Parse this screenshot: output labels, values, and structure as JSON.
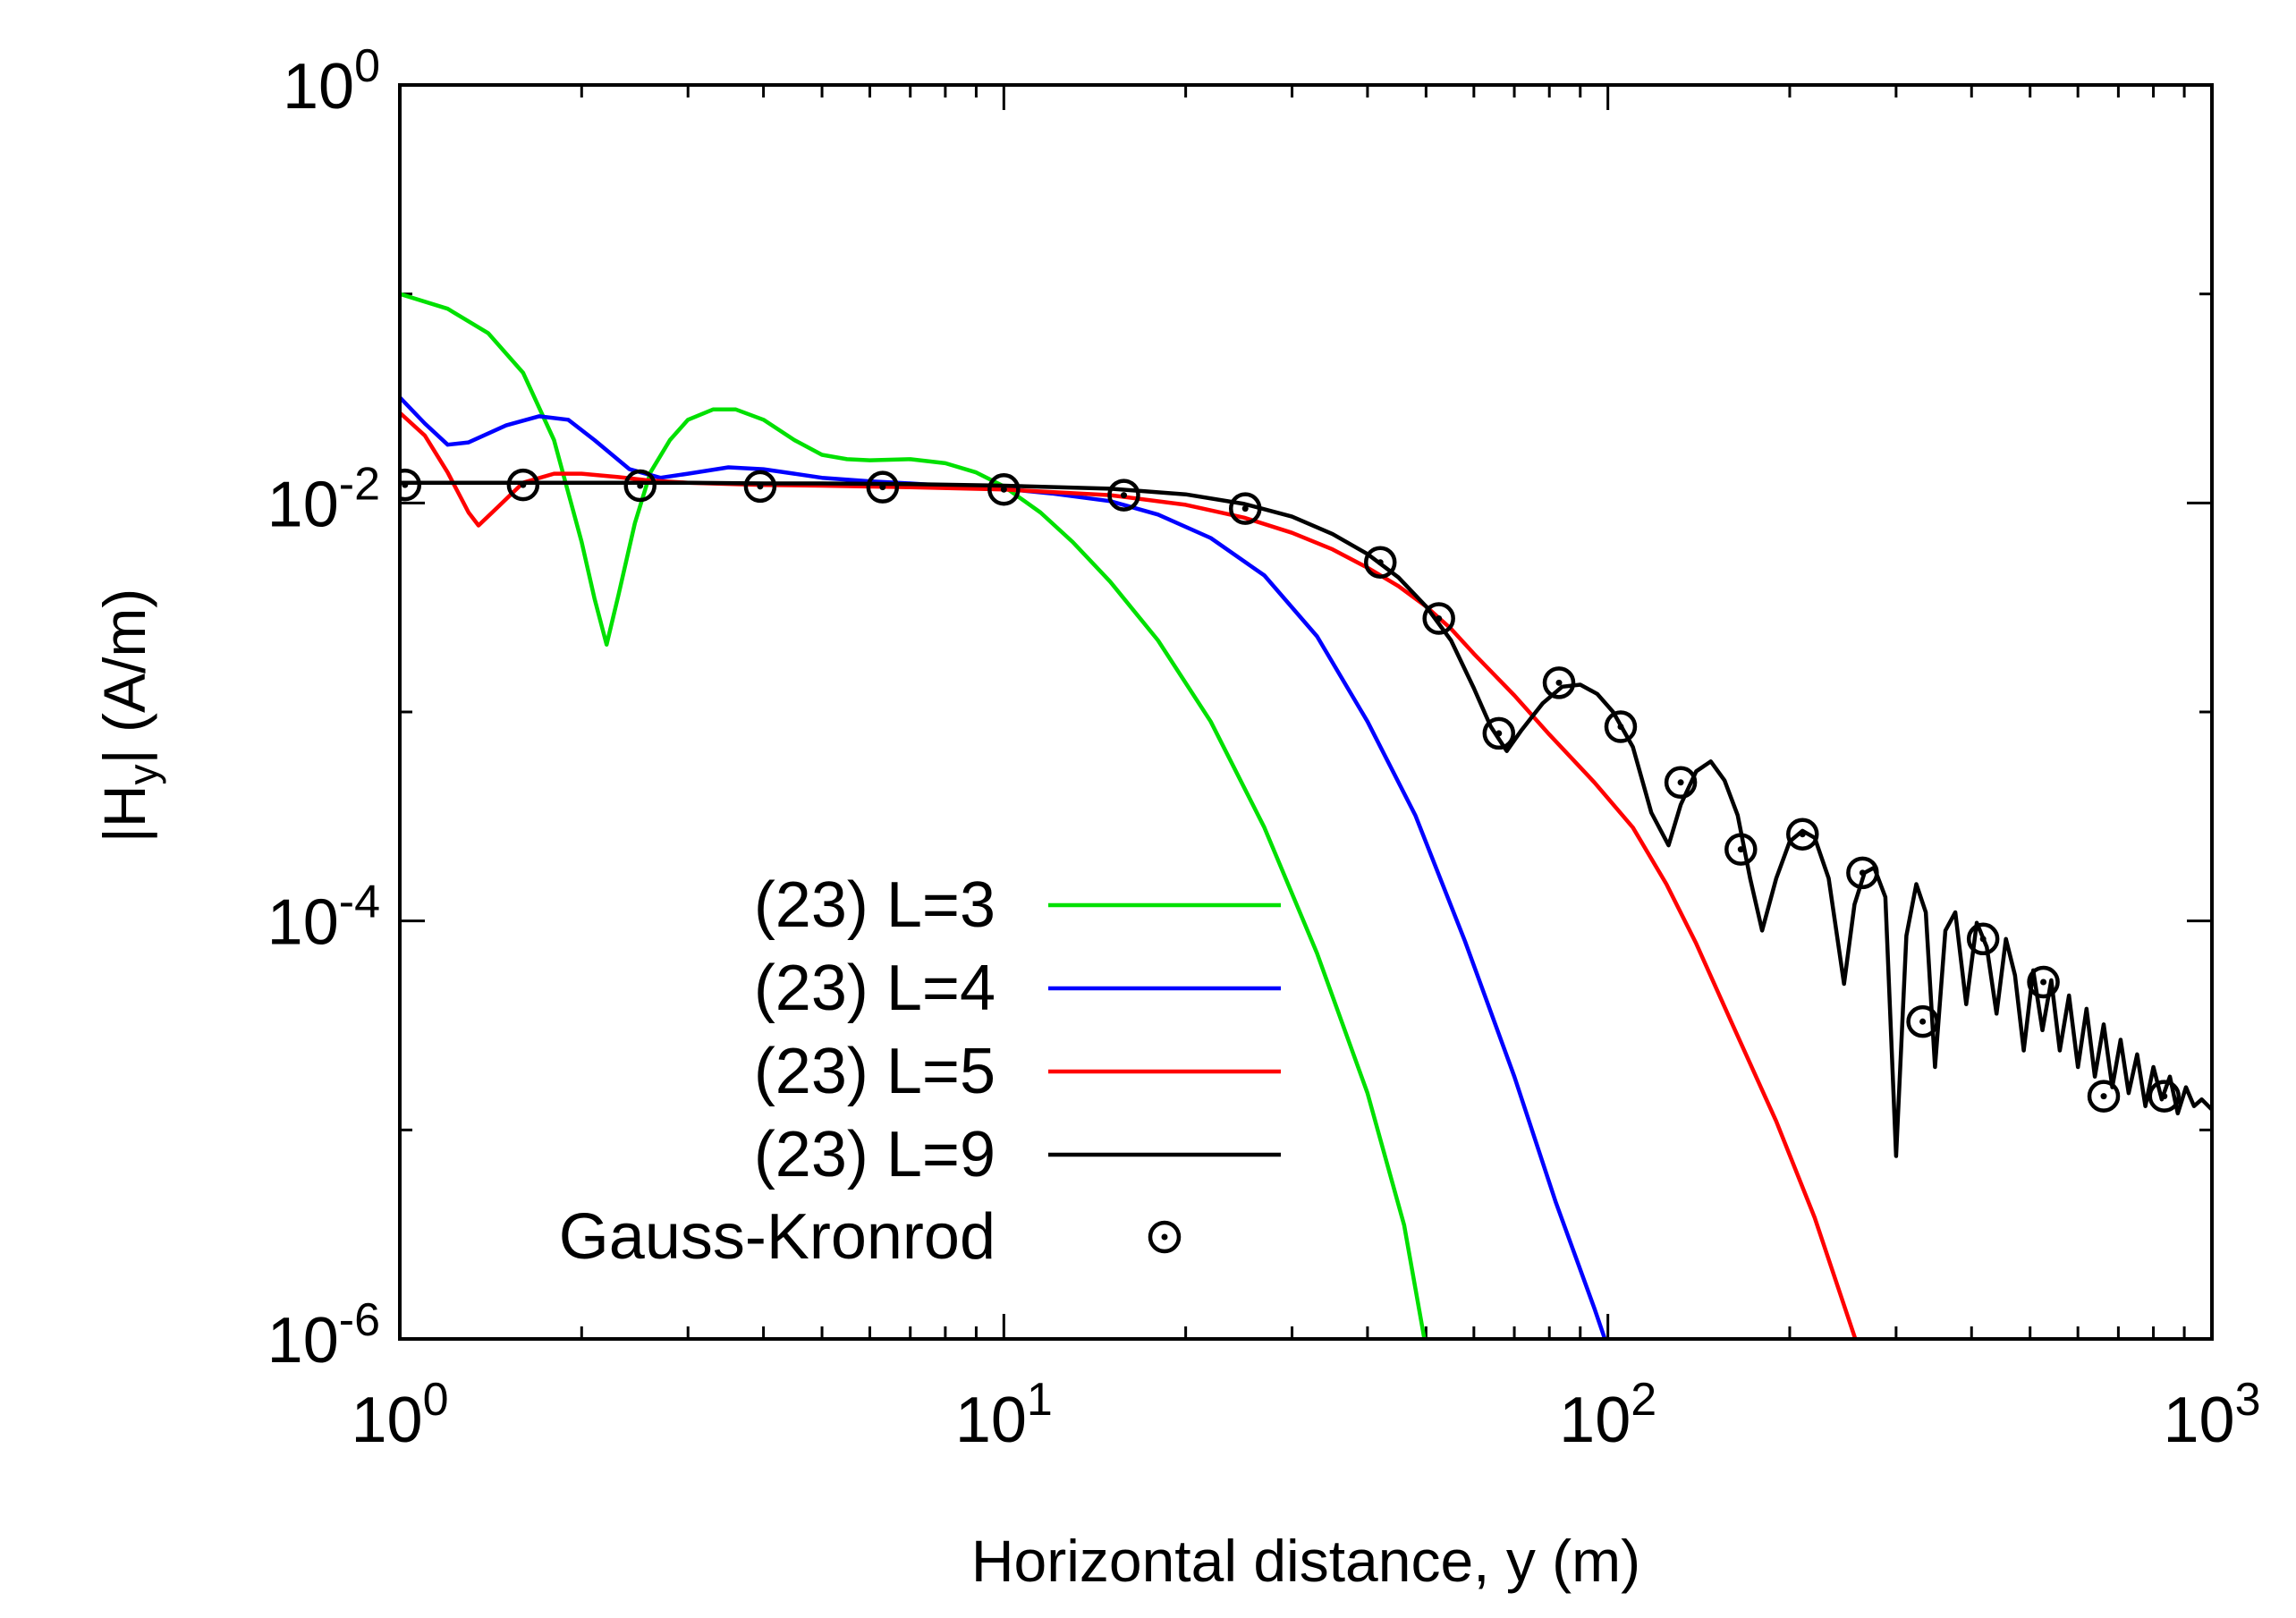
{
  "chart_data": {
    "type": "line",
    "title": "",
    "xlabel": "Horizontal distance,  y (m)",
    "ylabel_parts": [
      "|H",
      "y",
      "|  (A/m)"
    ],
    "xscale": "log",
    "yscale": "log",
    "xlim": [
      1,
      1000
    ],
    "ylim": [
      1e-06,
      1
    ],
    "x_ticks": [
      {
        "value": 1,
        "base": "10",
        "exp": "0"
      },
      {
        "value": 10,
        "base": "10",
        "exp": "1"
      },
      {
        "value": 100,
        "base": "10",
        "exp": "2"
      },
      {
        "value": 1000,
        "base": "10",
        "exp": "3"
      }
    ],
    "y_ticks": [
      {
        "value": 1,
        "base": "10",
        "exp": "0"
      },
      {
        "value": 0.01,
        "base": "10",
        "exp": "-2"
      },
      {
        "value": 0.0001,
        "base": "10",
        "exp": "-4"
      },
      {
        "value": 1e-06,
        "base": "10",
        "exp": "-6"
      }
    ],
    "legend_position": "lower-left",
    "series": [
      {
        "name": "(23)  L=3",
        "color": "#00e000",
        "x": [
          1,
          1.2,
          1.4,
          1.6,
          1.8,
          2.0,
          2.1,
          2.2,
          2.3,
          2.45,
          2.6,
          2.8,
          3.0,
          3.3,
          3.6,
          4.0,
          4.5,
          5.0,
          5.5,
          6.0,
          7.0,
          8.0,
          9.0,
          10.0,
          11.5,
          13.0,
          15.0,
          18.0,
          22.0,
          27.0,
          33.0,
          40.0,
          46.0,
          50.0
        ],
        "y": [
          0.1,
          0.085,
          0.065,
          0.042,
          0.02,
          0.0065,
          0.0035,
          0.0021,
          0.0036,
          0.008,
          0.014,
          0.02,
          0.025,
          0.028,
          0.028,
          0.025,
          0.02,
          0.017,
          0.0162,
          0.016,
          0.0162,
          0.0155,
          0.014,
          0.012,
          0.009,
          0.0065,
          0.0042,
          0.0022,
          0.0009,
          0.00028,
          7e-05,
          1.5e-05,
          3.5e-06,
          9e-07
        ]
      },
      {
        "name": "(23)  L=4",
        "color": "#0000ff",
        "x": [
          1,
          1.1,
          1.2,
          1.3,
          1.5,
          1.7,
          1.9,
          2.1,
          2.4,
          2.7,
          3.0,
          3.5,
          4.0,
          4.5,
          5.0,
          6.0,
          7.0,
          8.0,
          10.0,
          12.0,
          15.0,
          18.0,
          22.0,
          27.0,
          33.0,
          40.0,
          48.0,
          58.0,
          70.0,
          82.0,
          95.0,
          105.0
        ],
        "y": [
          0.032,
          0.024,
          0.019,
          0.0195,
          0.0235,
          0.026,
          0.025,
          0.02,
          0.0145,
          0.0132,
          0.0138,
          0.0148,
          0.0145,
          0.0138,
          0.0132,
          0.0127,
          0.0124,
          0.0121,
          0.0117,
          0.0111,
          0.0102,
          0.0088,
          0.0068,
          0.0045,
          0.0023,
          0.0009,
          0.00032,
          8e-05,
          1.8e-05,
          4.5e-06,
          1.4e-06,
          6e-07
        ]
      },
      {
        "name": "(23)  L=5",
        "color": "#ff0000",
        "x": [
          1,
          1.1,
          1.2,
          1.3,
          1.35,
          1.45,
          1.6,
          1.8,
          2.0,
          2.3,
          2.6,
          3.0,
          4.0,
          5.0,
          7.0,
          10.0,
          15.0,
          20.0,
          25.0,
          30.0,
          35.0,
          40.0,
          45.0,
          50.0,
          55.0,
          60.0,
          70.0,
          80.0,
          95.0,
          110.0,
          125.0,
          140.0,
          160.0,
          190.0,
          220.0,
          260.0
        ],
        "y": [
          0.027,
          0.021,
          0.014,
          0.009,
          0.0078,
          0.0095,
          0.0125,
          0.0138,
          0.0138,
          0.0133,
          0.0128,
          0.0125,
          0.0122,
          0.0121,
          0.0119,
          0.0116,
          0.0109,
          0.0098,
          0.0085,
          0.0072,
          0.006,
          0.0049,
          0.004,
          0.0032,
          0.0025,
          0.0019,
          0.0012,
          0.00078,
          0.00046,
          0.00028,
          0.00015,
          7.8e-05,
          3.3e-05,
          1.1e-05,
          3.8e-06,
          9e-07
        ]
      },
      {
        "name": "(23)  L=9",
        "color": "#000000",
        "x": [
          1,
          1.5,
          2,
          3,
          4,
          5,
          7,
          10,
          15,
          20,
          25,
          30,
          35,
          40,
          45,
          50,
          55,
          60,
          64,
          68,
          72,
          78,
          84,
          90,
          96,
          102,
          110,
          118,
          126,
          132,
          140,
          148,
          156,
          164,
          172,
          180,
          190,
          200,
          210,
          220,
          232,
          246,
          256,
          266,
          276,
          288,
          300,
          312,
          324,
          336,
          348,
          362,
          376,
          392,
          408,
          424,
          440,
          456,
          472,
          488,
          506,
          524,
          542,
          560,
          580,
          600,
          620,
          640,
          662,
          684,
          706,
          728,
          752,
          776,
          800,
          826,
          852,
          878,
          906,
          934,
          962,
          1000
        ],
        "y": [
          0.0125,
          0.0125,
          0.0125,
          0.0125,
          0.0124,
          0.0124,
          0.0123,
          0.0121,
          0.0117,
          0.011,
          0.0099,
          0.0086,
          0.0071,
          0.0057,
          0.0044,
          0.0032,
          0.0022,
          0.0013,
          0.00085,
          0.00065,
          0.00082,
          0.0011,
          0.00132,
          0.00135,
          0.00122,
          0.001,
          0.00068,
          0.00033,
          0.00023,
          0.00036,
          0.00052,
          0.00058,
          0.00047,
          0.00032,
          0.00016,
          9e-05,
          0.00016,
          0.00024,
          0.00027,
          0.00025,
          0.00016,
          5e-05,
          0.00012,
          0.00017,
          0.00018,
          0.00013,
          7.5e-06,
          8.5e-05,
          0.00015,
          0.00011,
          2e-05,
          9e-05,
          0.00011,
          4e-05,
          9.8e-05,
          7.5e-05,
          3.6e-05,
          8.2e-05,
          5.5e-05,
          2.4e-05,
          5.8e-05,
          3e-05,
          5.2e-05,
          2.4e-05,
          4.4e-05,
          2e-05,
          3.8e-05,
          1.8e-05,
          3.2e-05,
          1.6e-05,
          2.7e-05,
          1.5e-05,
          2.3e-05,
          1.3e-05,
          2e-05,
          1.4e-05,
          1.8e-05,
          1.2e-05,
          1.6e-05,
          1.3e-05,
          1.4e-05,
          1.25e-05
        ]
      },
      {
        "name": "Gauss-Kronrod",
        "color": "#000000",
        "marker": "circle-dot",
        "x": [
          1.02,
          1.6,
          2.5,
          3.95,
          6.3,
          10.0,
          15.8,
          25.1,
          42.0,
          52.5,
          66.0,
          83.0,
          105.0,
          132.0,
          166.0,
          210.0,
          264.0,
          332.0,
          418.0,
          526.0,
          662.0,
          834.0
        ],
        "y": [
          0.0122,
          0.0122,
          0.0121,
          0.012,
          0.0119,
          0.0116,
          0.0109,
          0.0094,
          0.0052,
          0.0028,
          0.00079,
          0.00138,
          0.00085,
          0.00046,
          0.00022,
          0.00026,
          0.00017,
          3.3e-05,
          8.2e-05,
          5.1e-05,
          1.45e-05,
          1.45e-05
        ]
      }
    ]
  }
}
